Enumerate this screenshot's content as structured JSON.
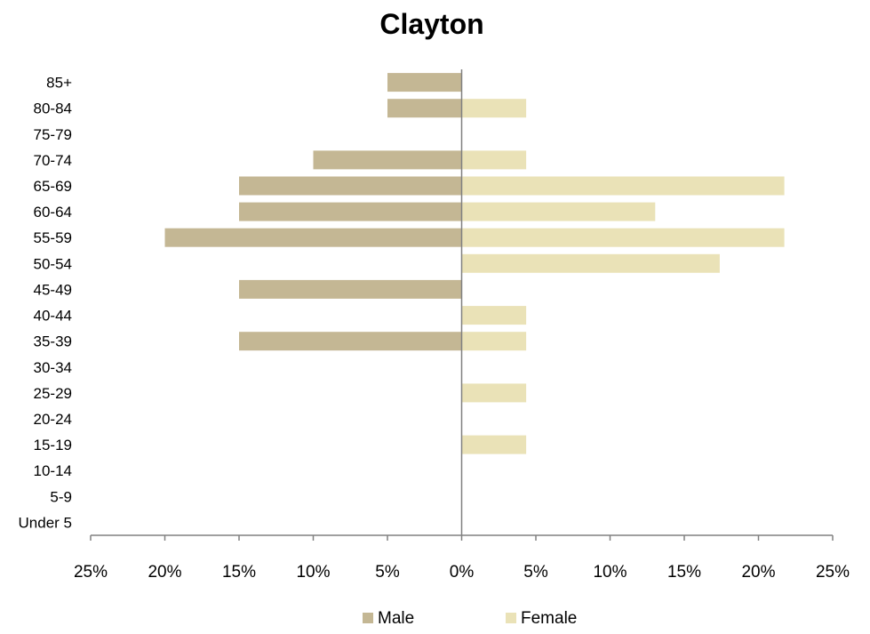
{
  "chart_data": {
    "type": "bar",
    "orientation": "horizontal",
    "subtype": "population-pyramid",
    "title": "Clayton",
    "categories": [
      "Under 5",
      "5-9",
      "10-14",
      "15-19",
      "20-24",
      "25-29",
      "30-34",
      "35-39",
      "40-44",
      "45-49",
      "50-54",
      "55-59",
      "60-64",
      "65-69",
      "70-74",
      "75-79",
      "80-84",
      "85+"
    ],
    "series": [
      {
        "name": "Male",
        "color": "#c4b794",
        "side": "left",
        "values": [
          0,
          0,
          0,
          0,
          0,
          0,
          0,
          15,
          0,
          15,
          0,
          20,
          15,
          15,
          10,
          0,
          5,
          5
        ]
      },
      {
        "name": "Female",
        "color": "#eae2b7",
        "side": "right",
        "values": [
          0,
          0,
          0,
          4.35,
          0,
          4.35,
          0,
          4.35,
          4.35,
          0,
          17.39,
          21.74,
          13.04,
          21.74,
          4.35,
          0,
          4.35,
          0
        ]
      }
    ],
    "x_ticks": [
      "25%",
      "20%",
      "15%",
      "10%",
      "5%",
      "0%",
      "5%",
      "10%",
      "15%",
      "20%",
      "25%"
    ],
    "xlim": [
      -25,
      25
    ],
    "value_unit": "percent",
    "legend_position": "bottom",
    "grid": false,
    "axis_color": "#808080"
  }
}
